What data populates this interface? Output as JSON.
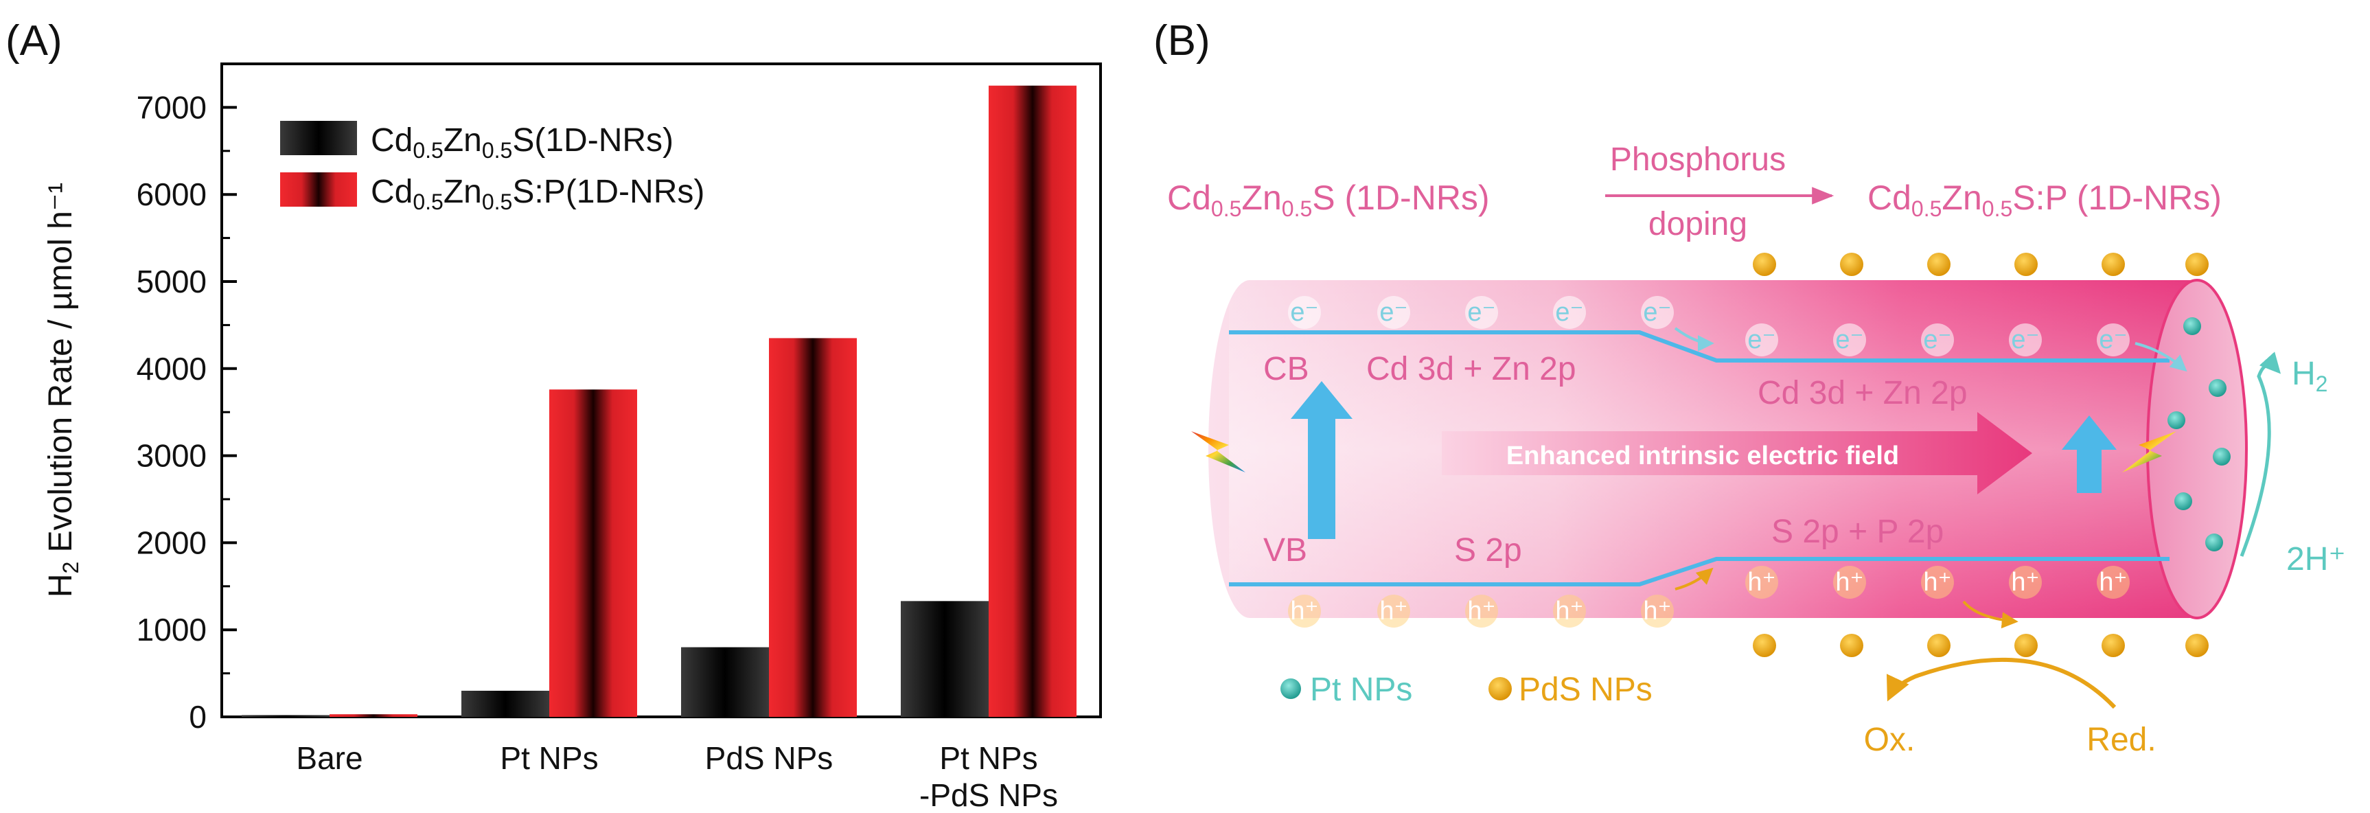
{
  "panel_a": {
    "label": "(A)"
  },
  "panel_b": {
    "label": "(B)",
    "left_material": {
      "pre": "Cd",
      "sub1": "0.5",
      "mid": "Zn",
      "sub2": "0.5",
      "post": "S (1D-NRs)"
    },
    "right_material": {
      "pre": "Cd",
      "sub1": "0.5",
      "mid": "Zn",
      "sub2": "0.5",
      "post": "S:P (1D-NRs)"
    },
    "arrow_top": "Phosphorus",
    "arrow_bottom": "doping",
    "cb": "CB",
    "vb": "VB",
    "cb_left_orbital": "Cd 3d + Zn 2p",
    "cb_right_orbital": "Cd 3d + Zn 2p",
    "vb_left_orbital": "S 2p",
    "vb_right_orbital": "S 2p + P 2p",
    "field_label": "Enhanced intrinsic electric field",
    "electron": "e⁻",
    "hole": "h⁺",
    "h2": {
      "main": "H",
      "sub": "2"
    },
    "proton": "2H⁺",
    "legend_pt": "Pt NPs",
    "legend_pds": "PdS NPs",
    "ox": "Ox.",
    "red": "Red.",
    "colors": {
      "pink": "#e0609a",
      "teal": "#5cc9c0",
      "gold": "#e8a317",
      "blue": "#4db8e8"
    }
  },
  "chart_data": {
    "type": "bar",
    "categories": [
      "Bare",
      "Pt NPs",
      "PdS NPs",
      "Pt NPs\n-PdS NPs"
    ],
    "series": [
      {
        "name": "Cd0.5Zn0.5S(1D-NRs)",
        "label_parts": [
          "Cd",
          "0.5",
          "Zn",
          "0.5",
          "S(1D-NRs)"
        ],
        "color": "#000000",
        "values": [
          20,
          300,
          800,
          1330
        ]
      },
      {
        "name": "Cd0.5Zn0.5S:P(1D-NRs)",
        "label_parts": [
          "Cd",
          "0.5",
          "Zn",
          "0.5",
          "S:P(1D-NRs)"
        ],
        "color": "#e8282e",
        "values": [
          30,
          3760,
          4350,
          7250
        ]
      }
    ],
    "ylabel": {
      "main": "H",
      "sub": "2",
      "rest": " Evolution Rate / µmol h⁻¹"
    },
    "yticks": [
      "0",
      "1000",
      "2000",
      "3000",
      "4000",
      "5000",
      "6000",
      "7000"
    ],
    "ylim": [
      0,
      7500
    ],
    "legend": "top-left"
  }
}
